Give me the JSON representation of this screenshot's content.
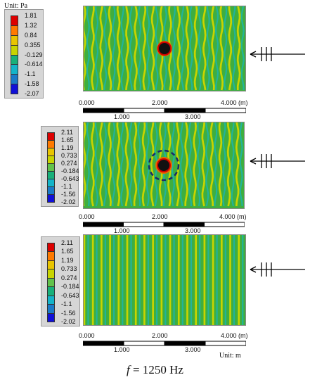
{
  "unit_top": "Unit: Pa",
  "unit_bottom": "Unit: m",
  "caption": {
    "var": "f",
    "rest": " = 1250 Hz"
  },
  "colors": [
    "#dd0000",
    "#ff7a00",
    "#e8c400",
    "#c8d400",
    "#62c24a",
    "#18b07a",
    "#14b4c8",
    "#1a7ac8",
    "#1010d8"
  ],
  "panels": [
    {
      "legend": [
        "1.81",
        "1.32",
        "0.84",
        "0.355",
        "-0.129",
        "-0.614",
        "-1.1",
        "-1.58",
        "-2.07"
      ],
      "scale_top": [
        "0.000",
        "2.000",
        "4.000 (m)"
      ],
      "scale_bottom": [
        "1.000",
        "3.000"
      ],
      "field_type": "scatter_small"
    },
    {
      "legend": [
        "2.11",
        "1.65",
        "1.19",
        "0.733",
        "0.274",
        "-0.184",
        "-0.643",
        "-1.1",
        "-1.56",
        "-2.02"
      ],
      "scale_top": [
        "0.000",
        "2.000",
        "4.000 (m)"
      ],
      "scale_bottom": [
        "1.000",
        "3.000"
      ],
      "field_type": "scatter_dashed"
    },
    {
      "legend": [
        "2.11",
        "1.65",
        "1.19",
        "0.733",
        "0.274",
        "-0.184",
        "-0.643",
        "-1.1",
        "-1.56",
        "-2.02"
      ],
      "scale_top": [
        "0.000",
        "2.000",
        "4.000 (m)"
      ],
      "scale_bottom": [
        "1.000",
        "3.000"
      ],
      "field_type": "plane"
    }
  ]
}
